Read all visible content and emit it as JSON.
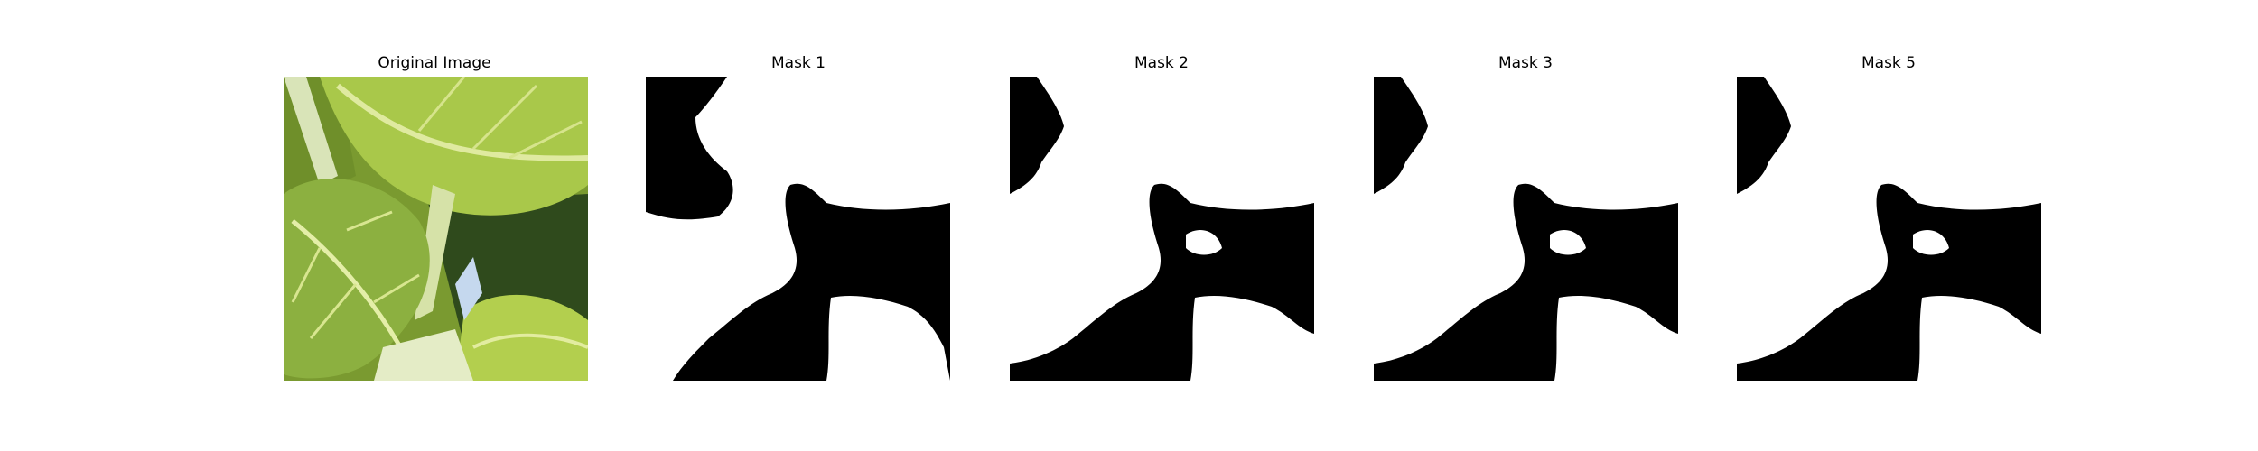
{
  "figure": {
    "panels": [
      {
        "title": "Original Image",
        "kind": "photo",
        "icon": "leafy-greens-photo"
      },
      {
        "title": "Mask 1",
        "kind": "mask"
      },
      {
        "title": "Mask 2",
        "kind": "mask"
      },
      {
        "title": "Mask 3",
        "kind": "mask"
      },
      {
        "title": "Mask 5",
        "kind": "mask"
      }
    ],
    "colors": {
      "mask_foreground": "#ffffff",
      "mask_background": "#000000",
      "leaf_light": "#c9de5a",
      "leaf_mid": "#8fb33a",
      "leaf_dark": "#4a6b22",
      "stem": "#dfe8c0"
    }
  }
}
